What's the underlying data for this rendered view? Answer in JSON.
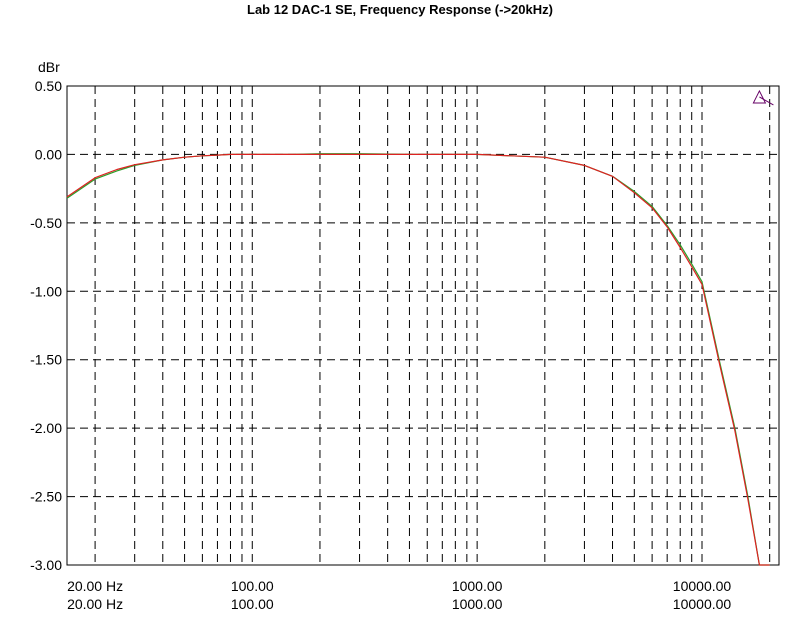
{
  "chart_data": {
    "type": "line",
    "title": "Lab 12 DAC-1 SE, Frequency Response (->20kHz)",
    "ylabel": "dBr",
    "xlabel": "",
    "xscale": "log",
    "xlim": [
      15,
      22000
    ],
    "ylim": [
      -3.0,
      0.5
    ],
    "grid": true,
    "grid_style": "dashed",
    "ytick_labels": [
      "0.50",
      "0.00",
      "-0.50",
      "-1.00",
      "-1.50",
      "-2.00",
      "-2.50",
      "-3.00"
    ],
    "ytick_values": [
      0.5,
      0.0,
      -0.5,
      -1.0,
      -1.5,
      -2.0,
      -2.5,
      -3.0
    ],
    "xtick_values": [
      20,
      100,
      1000,
      10000
    ],
    "xtick_labels_row1": [
      "20.00 Hz",
      "100.00",
      "1000.00",
      "10000.00"
    ],
    "xtick_labels_row2": [
      "20.00 Hz",
      "100.00",
      "1000.00",
      "10000.00"
    ],
    "marker": {
      "type": "triangle",
      "x": 18000,
      "y": 0.42,
      "color": "#660066"
    },
    "series": [
      {
        "color": "#2aa02a",
        "x": [
          15,
          20,
          25,
          30,
          40,
          50,
          60,
          70,
          80,
          100,
          150,
          200,
          300,
          500,
          1000,
          2000,
          3000,
          4000,
          5000,
          6000,
          7000,
          8000,
          9000,
          10000,
          12000,
          14000,
          16000,
          18000,
          20000
        ],
        "y": [
          -0.32,
          -0.18,
          -0.12,
          -0.08,
          -0.04,
          -0.02,
          -0.01,
          -0.005,
          0.0,
          0.0,
          0.0,
          0.005,
          0.005,
          0.0,
          0.0,
          -0.02,
          -0.08,
          -0.16,
          -0.27,
          -0.38,
          -0.52,
          -0.66,
          -0.8,
          -0.93,
          -1.52,
          -2.0,
          -2.5,
          -3.0,
          -3.0
        ]
      },
      {
        "color": "#dd2222",
        "x": [
          15,
          20,
          25,
          30,
          40,
          50,
          60,
          70,
          80,
          100,
          150,
          200,
          300,
          500,
          1000,
          2000,
          3000,
          4000,
          5000,
          6000,
          7000,
          8000,
          9000,
          10000,
          12000,
          14000,
          16000,
          18000,
          20000
        ],
        "y": [
          -0.31,
          -0.17,
          -0.11,
          -0.075,
          -0.04,
          -0.02,
          -0.01,
          -0.005,
          0.0,
          0.0,
          0.0,
          0.0,
          0.0,
          0.0,
          0.0,
          -0.02,
          -0.08,
          -0.16,
          -0.28,
          -0.39,
          -0.53,
          -0.68,
          -0.82,
          -0.95,
          -1.54,
          -2.02,
          -2.52,
          -3.0,
          -3.0
        ]
      }
    ]
  }
}
